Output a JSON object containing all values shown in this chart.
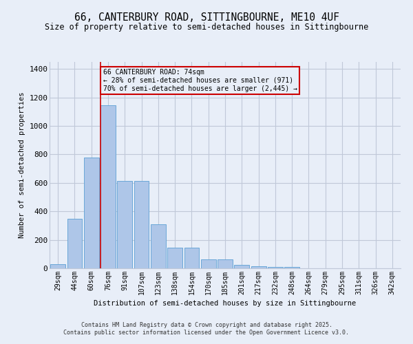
{
  "title": "66, CANTERBURY ROAD, SITTINGBOURNE, ME10 4UF",
  "subtitle": "Size of property relative to semi-detached houses in Sittingbourne",
  "xlabel": "Distribution of semi-detached houses by size in Sittingbourne",
  "ylabel": "Number of semi-detached properties",
  "categories": [
    "29sqm",
    "44sqm",
    "60sqm",
    "76sqm",
    "91sqm",
    "107sqm",
    "123sqm",
    "138sqm",
    "154sqm",
    "170sqm",
    "185sqm",
    "201sqm",
    "217sqm",
    "232sqm",
    "248sqm",
    "264sqm",
    "279sqm",
    "295sqm",
    "311sqm",
    "326sqm",
    "342sqm"
  ],
  "values": [
    28,
    350,
    780,
    1145,
    615,
    615,
    310,
    145,
    145,
    65,
    65,
    25,
    15,
    10,
    10,
    0,
    0,
    0,
    0,
    0,
    0
  ],
  "bar_color": "#aec6e8",
  "bar_edge_color": "#5a9fd4",
  "vline_color": "#cc0000",
  "vline_x_index": 2.55,
  "annotation_title": "66 CANTERBURY ROAD: 74sqm",
  "annotation_line1": "← 28% of semi-detached houses are smaller (971)",
  "annotation_line2": "70% of semi-detached houses are larger (2,445) →",
  "annotation_box_color": "#cc0000",
  "ylim": [
    0,
    1450
  ],
  "yticks": [
    0,
    200,
    400,
    600,
    800,
    1000,
    1200,
    1400
  ],
  "footer1": "Contains HM Land Registry data © Crown copyright and database right 2025.",
  "footer2": "Contains public sector information licensed under the Open Government Licence v3.0.",
  "bg_color": "#e8eef8",
  "grid_color": "#c0c8d8"
}
